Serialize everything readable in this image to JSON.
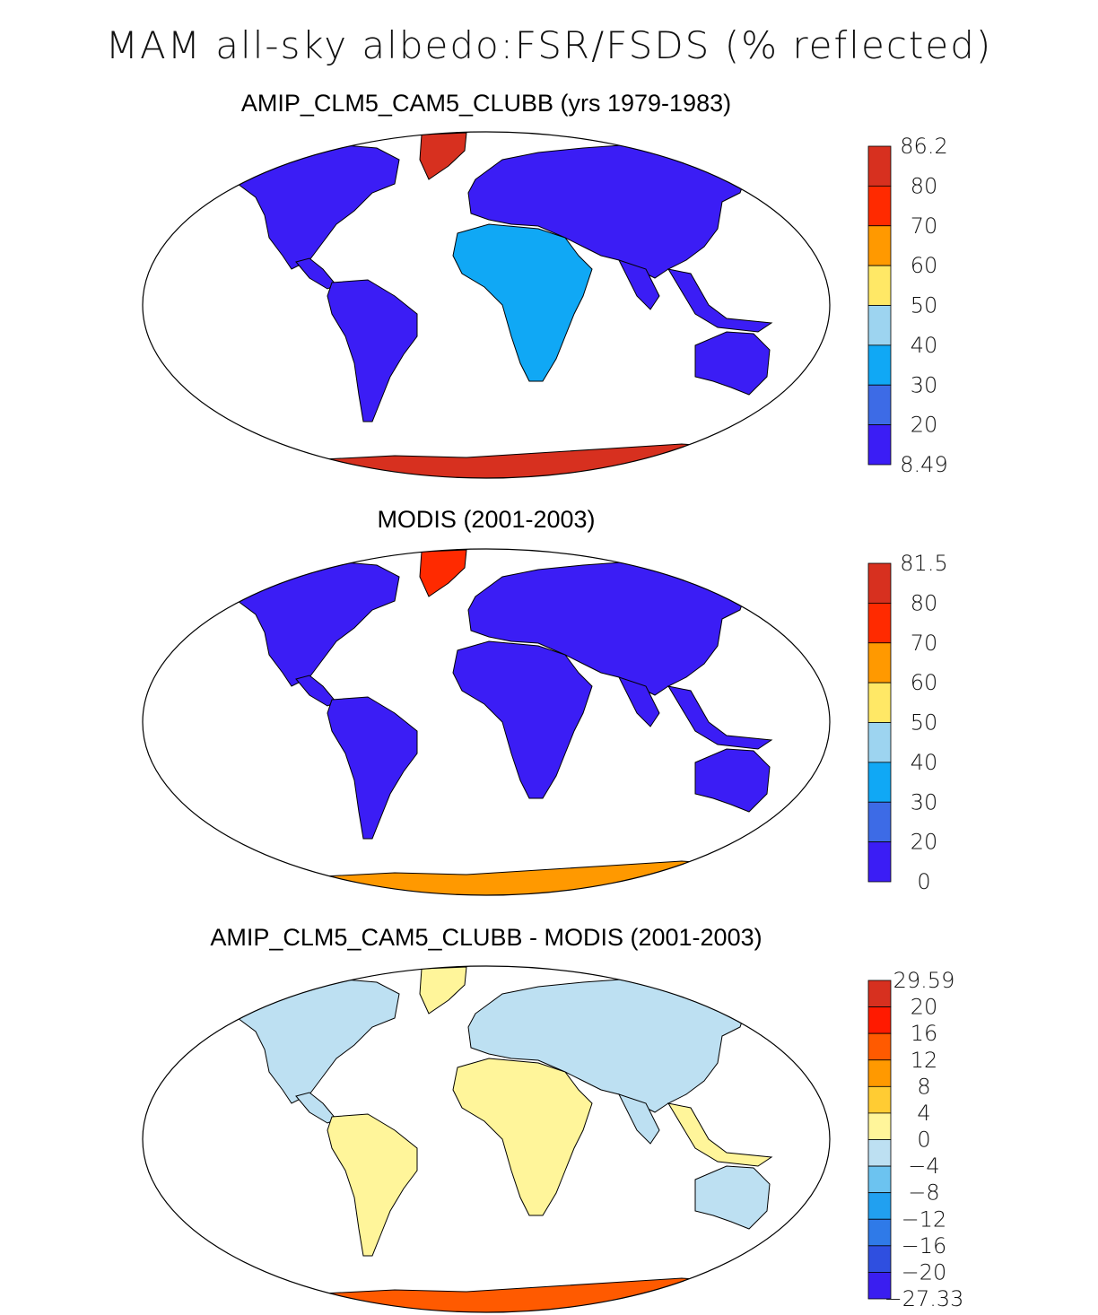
{
  "main_title": "MAM all-sky albedo:FSR/FSDS (% reflected)",
  "panels": [
    {
      "title": "AMIP_CLM5_CAM5_CLUBB (yrs 1979-1983)",
      "colorbar": {
        "labels": [
          "86.2",
          "80",
          "70",
          "60",
          "50",
          "40",
          "30",
          "20",
          "8.49"
        ],
        "colors": [
          "#d7301f",
          "#ff2a00",
          "#ff9900",
          "#ffe866",
          "#9dd4f0",
          "#10a8f5",
          "#3d6be6",
          "#3b1df5"
        ]
      }
    },
    {
      "title": "MODIS (2001-2003)",
      "colorbar": {
        "labels": [
          "81.5",
          "80",
          "70",
          "60",
          "50",
          "40",
          "30",
          "20",
          "0"
        ],
        "colors": [
          "#d7301f",
          "#ff2a00",
          "#ff9900",
          "#ffe866",
          "#9dd4f0",
          "#10a8f5",
          "#3d6be6",
          "#3b1df5"
        ]
      }
    },
    {
      "title": "AMIP_CLM5_CAM5_CLUBB - MODIS (2001-2003)",
      "colorbar": {
        "labels": [
          "29.59",
          "20",
          "16",
          "12",
          "8",
          "4",
          "0",
          "−4",
          "−8",
          "−12",
          "−16",
          "−20",
          "−27.33"
        ],
        "colors": [
          "#d7301f",
          "#ff1a00",
          "#ff5a00",
          "#ff9900",
          "#ffcc33",
          "#fff59a",
          "#bde0f2",
          "#6cc3f0",
          "#21a0f0",
          "#2f7ae8",
          "#2f4fe0",
          "#3a1ef0"
        ]
      }
    }
  ]
}
